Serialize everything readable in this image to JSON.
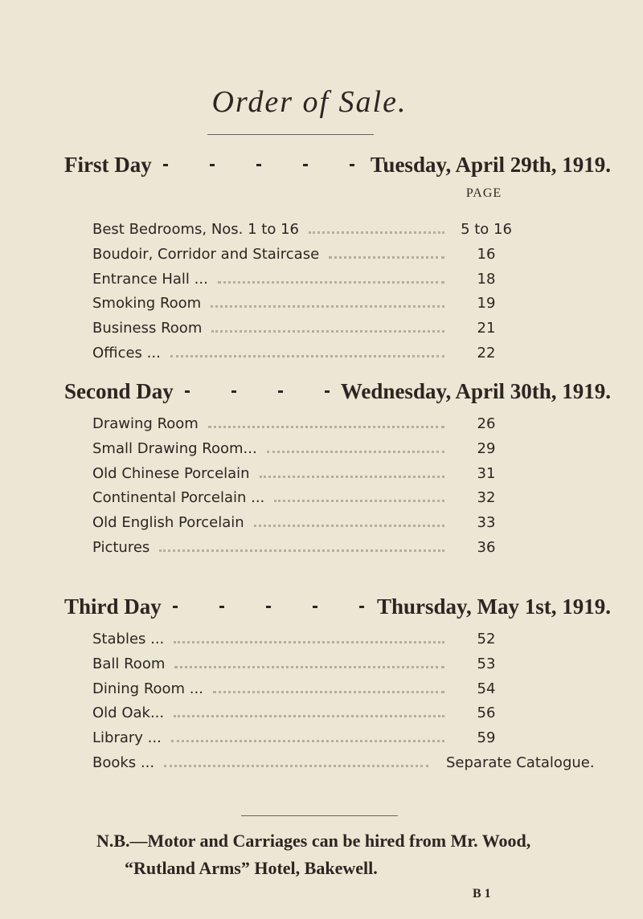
{
  "title": "Order of Sale.",
  "sections": [
    {
      "day": "First Day",
      "date": "Tuesday, April 29th, 1919.",
      "page_header": "PAGE",
      "rows": [
        {
          "room": "Best Bedrooms, Nos. 1 to 16",
          "page": "5 to 16"
        },
        {
          "room": "Boudoir, Corridor and Staircase",
          "page": "16"
        },
        {
          "room": "Entrance Hall ...",
          "page": "18"
        },
        {
          "room": "Smoking Room",
          "page": "19"
        },
        {
          "room": "Business Room",
          "page": "21"
        },
        {
          "room": "Offices ...",
          "page": "22"
        }
      ]
    },
    {
      "day": "Second Day",
      "date": "Wednesday, April 30th, 1919.",
      "rows": [
        {
          "room": "Drawing Room",
          "page": "26"
        },
        {
          "room": "Small Drawing Room...",
          "page": "29"
        },
        {
          "room": "Old Chinese Porcelain",
          "page": "31"
        },
        {
          "room": "Continental Porcelain ...",
          "page": "32"
        },
        {
          "room": "Old English Porcelain",
          "page": "33"
        },
        {
          "room": "Pictures",
          "page": "36"
        }
      ]
    },
    {
      "day": "Third Day",
      "date": "Thursday, May 1st, 1919.",
      "rows": [
        {
          "room": "Stables ...",
          "page": "52"
        },
        {
          "room": "Ball Room",
          "page": "53"
        },
        {
          "room": "Dining Room ...",
          "page": "54"
        },
        {
          "room": "Old Oak...",
          "page": "56"
        },
        {
          "room": "Library ...",
          "page": "59"
        },
        {
          "room": "Books ...",
          "page": "Separate Catalogue."
        }
      ]
    }
  ],
  "note": {
    "line1": "N.B.—Motor and Carriages can be hired from Mr. Wood,",
    "line2": "“Rutland Arms” Hotel, Bakewell."
  },
  "signature": "B 1"
}
